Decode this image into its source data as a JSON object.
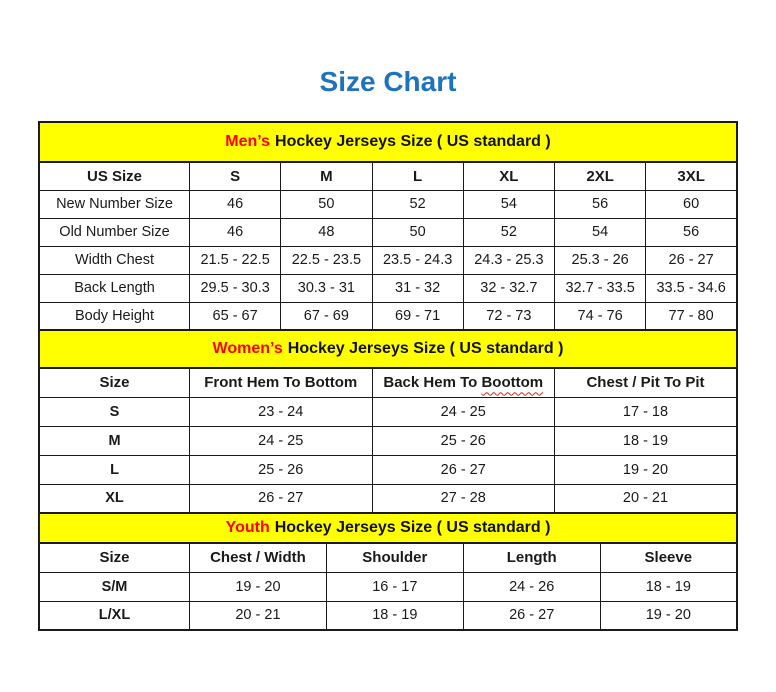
{
  "page_title": "Size Chart",
  "colors": {
    "title_blue": "#1e73be",
    "band_yellow": "#ffff00",
    "highlight_red": "#ff0000",
    "border_black": "#1a1a1a"
  },
  "chart_data": [
    {
      "type": "table",
      "title": "Men’s Hockey Jerseys Size ( US standard )",
      "title_highlight": "Men’s",
      "title_rest": "Hockey Jerseys Size ( US standard )",
      "columns": [
        "US Size",
        "S",
        "M",
        "L",
        "XL",
        "2XL",
        "3XL"
      ],
      "bold_row_labels": false,
      "rows": [
        [
          "New Number Size",
          "46",
          "50",
          "52",
          "54",
          "56",
          "60"
        ],
        [
          "Old Number Size",
          "46",
          "48",
          "50",
          "52",
          "54",
          "56"
        ],
        [
          "Width Chest",
          "21.5 - 22.5",
          "22.5 - 23.5",
          "23.5 - 24.3",
          "24.3 - 25.3",
          "25.3 - 26",
          "26 - 27"
        ],
        [
          "Back Length",
          "29.5 - 30.3",
          "30.3 - 31",
          "31 - 32",
          "32 - 32.7",
          "32.7 - 33.5",
          "33.5 - 34.6"
        ],
        [
          "Body Height",
          "65 - 67",
          "67 - 69",
          "69 - 71",
          "72 - 73",
          "74 - 76",
          "77 - 80"
        ]
      ]
    },
    {
      "type": "table",
      "title": "Women’s Hockey Jerseys Size ( US standard )",
      "title_highlight": "Women’s",
      "title_rest": "Hockey Jerseys Size ( US standard )",
      "columns": [
        "Size",
        "Front Hem To Bottom",
        "Back Hem To Boottom",
        "Chest / Pit To Pit"
      ],
      "misspelling": {
        "column": 2,
        "word": "Boottom"
      },
      "bold_row_labels": true,
      "rows": [
        [
          "S",
          "23 - 24",
          "24 - 25",
          "17 - 18"
        ],
        [
          "M",
          "24 - 25",
          "25 - 26",
          "18 - 19"
        ],
        [
          "L",
          "25 - 26",
          "26 - 27",
          "19 - 20"
        ],
        [
          "XL",
          "26 - 27",
          "27 - 28",
          "20 - 21"
        ]
      ]
    },
    {
      "type": "table",
      "title": "Youth Hockey Jerseys Size ( US standard )",
      "title_highlight": "Youth",
      "title_rest": "Hockey Jerseys Size ( US standard )",
      "columns": [
        "Size",
        "Chest / Width",
        "Shoulder",
        "Length",
        "Sleeve"
      ],
      "bold_row_labels": true,
      "rows": [
        [
          "S/M",
          "19 - 20",
          "16 - 17",
          "24 - 26",
          "18 - 19"
        ],
        [
          "L/XL",
          "20 - 21",
          "18 - 19",
          "26 - 27",
          "19 - 20"
        ]
      ]
    }
  ]
}
